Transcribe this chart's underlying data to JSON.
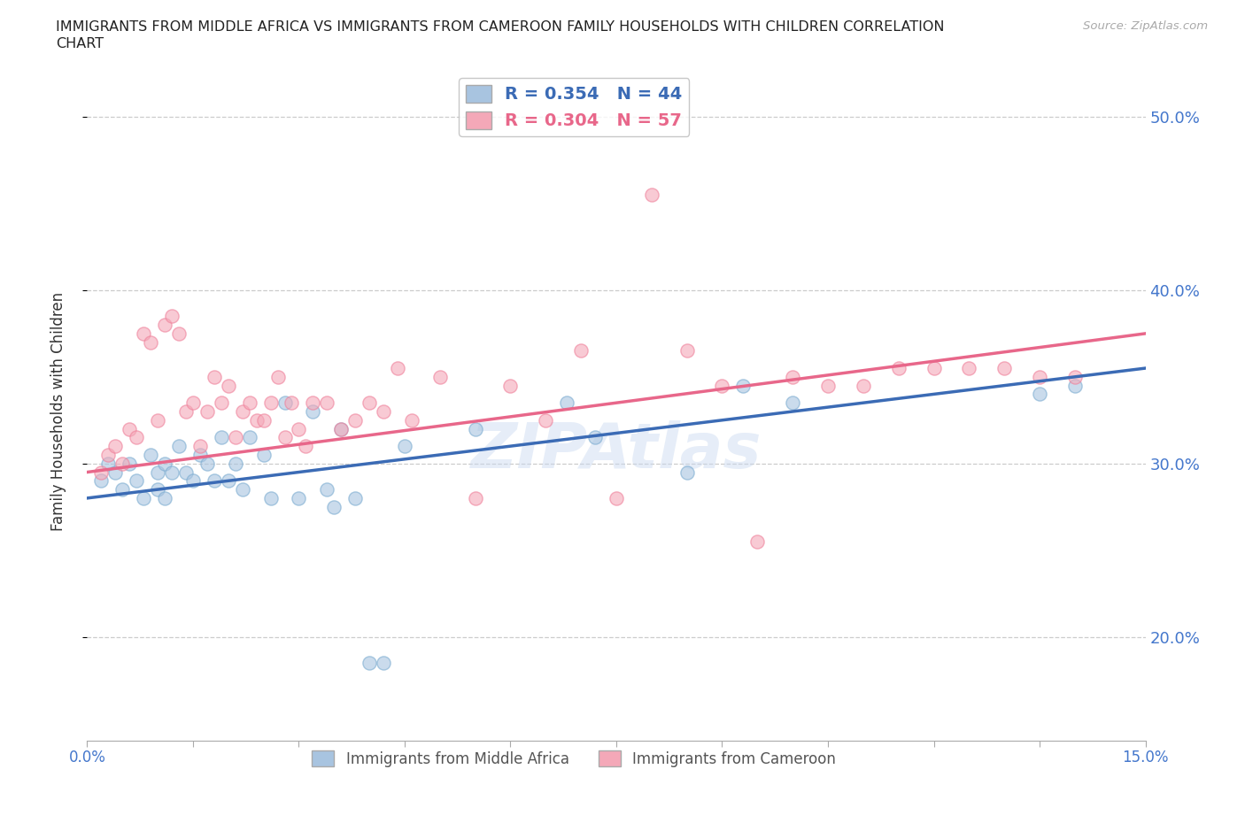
{
  "title_line1": "IMMIGRANTS FROM MIDDLE AFRICA VS IMMIGRANTS FROM CAMEROON FAMILY HOUSEHOLDS WITH CHILDREN CORRELATION",
  "title_line2": "CHART",
  "source": "Source: ZipAtlas.com",
  "ylabel": "Family Households with Children",
  "xlim": [
    0.0,
    15.0
  ],
  "ylim": [
    14.0,
    52.0
  ],
  "yticks": [
    20.0,
    30.0,
    40.0,
    50.0
  ],
  "ytick_labels": [
    "20.0%",
    "30.0%",
    "40.0%",
    "50.0%"
  ],
  "blue_color": "#A8C4E0",
  "pink_color": "#F4A8B8",
  "blue_edge_color": "#7AABD0",
  "pink_edge_color": "#EF7F99",
  "blue_line_color": "#3B6BB5",
  "pink_line_color": "#E8678A",
  "watermark": "ZIPAtlas",
  "legend_R1": "R = 0.354",
  "legend_N1": "N = 44",
  "legend_R2": "R = 0.304",
  "legend_N2": "N = 57",
  "blue_scatter_x": [
    0.2,
    0.3,
    0.4,
    0.5,
    0.6,
    0.7,
    0.8,
    0.9,
    1.0,
    1.0,
    1.1,
    1.1,
    1.2,
    1.3,
    1.4,
    1.5,
    1.6,
    1.7,
    1.8,
    1.9,
    2.0,
    2.1,
    2.2,
    2.3,
    2.5,
    2.6,
    2.8,
    3.0,
    3.2,
    3.4,
    3.5,
    3.6,
    3.8,
    4.0,
    4.2,
    4.5,
    5.5,
    6.8,
    7.2,
    8.5,
    9.3,
    10.0,
    13.5,
    14.0
  ],
  "blue_scatter_y": [
    29.0,
    30.0,
    29.5,
    28.5,
    30.0,
    29.0,
    28.0,
    30.5,
    29.5,
    28.5,
    30.0,
    28.0,
    29.5,
    31.0,
    29.5,
    29.0,
    30.5,
    30.0,
    29.0,
    31.5,
    29.0,
    30.0,
    28.5,
    31.5,
    30.5,
    28.0,
    33.5,
    28.0,
    33.0,
    28.5,
    27.5,
    32.0,
    28.0,
    18.5,
    18.5,
    31.0,
    32.0,
    33.5,
    31.5,
    29.5,
    34.5,
    33.5,
    34.0,
    34.5
  ],
  "pink_scatter_x": [
    0.2,
    0.3,
    0.4,
    0.5,
    0.6,
    0.7,
    0.8,
    0.9,
    1.0,
    1.1,
    1.2,
    1.3,
    1.4,
    1.5,
    1.6,
    1.7,
    1.8,
    1.9,
    2.0,
    2.1,
    2.2,
    2.3,
    2.4,
    2.5,
    2.6,
    2.7,
    2.8,
    2.9,
    3.0,
    3.1,
    3.2,
    3.4,
    3.6,
    3.8,
    4.0,
    4.2,
    4.4,
    4.6,
    5.0,
    5.5,
    6.0,
    6.5,
    7.0,
    7.5,
    8.0,
    8.5,
    9.0,
    9.5,
    10.0,
    10.5,
    11.0,
    11.5,
    12.0,
    12.5,
    13.0,
    13.5,
    14.0
  ],
  "pink_scatter_y": [
    29.5,
    30.5,
    31.0,
    30.0,
    32.0,
    31.5,
    37.5,
    37.0,
    32.5,
    38.0,
    38.5,
    37.5,
    33.0,
    33.5,
    31.0,
    33.0,
    35.0,
    33.5,
    34.5,
    31.5,
    33.0,
    33.5,
    32.5,
    32.5,
    33.5,
    35.0,
    31.5,
    33.5,
    32.0,
    31.0,
    33.5,
    33.5,
    32.0,
    32.5,
    33.5,
    33.0,
    35.5,
    32.5,
    35.0,
    28.0,
    34.5,
    32.5,
    36.5,
    28.0,
    45.5,
    36.5,
    34.5,
    25.5,
    35.0,
    34.5,
    34.5,
    35.5,
    35.5,
    35.5,
    35.5,
    35.0,
    35.0
  ],
  "blue_trendline_x": [
    0.0,
    15.0
  ],
  "blue_trendline_y": [
    28.0,
    35.5
  ],
  "pink_trendline_x": [
    0.0,
    15.0
  ],
  "pink_trendline_y": [
    29.5,
    37.5
  ],
  "background_color": "#FFFFFF",
  "grid_color": "#CCCCCC"
}
